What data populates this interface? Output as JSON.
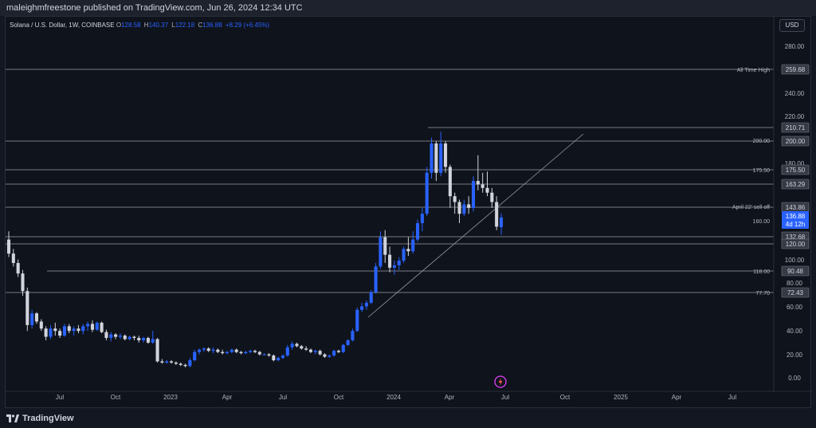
{
  "header": {
    "publisher_text": "maleighmfreestone published on TradingView.com, Jun 26, 2024 12:34 UTC"
  },
  "symbol": {
    "title": "Solana / U.S. Dollar, 1W, COINBASE",
    "open_label": "O",
    "open": "128.58",
    "high_label": "H",
    "high": "140.37",
    "low_label": "L",
    "low": "122.18",
    "close_label": "C",
    "close": "136.88",
    "change": "+8.29 (+6.45%)"
  },
  "currency": "USD",
  "footer": {
    "brand": "TradingView"
  },
  "colors": {
    "background": "#0f131c",
    "bull": "#2962ff",
    "bear": "#d1d4dc",
    "line": "#787b86",
    "price_badge": "#2962ff"
  },
  "chart_data": {
    "type": "candlestick",
    "timeframe": "1W",
    "x_axis_labels": [
      "Jul",
      "Oct",
      "2023",
      "Apr",
      "Jul",
      "Oct",
      "2024",
      "Apr",
      "Jul",
      "Oct",
      "2025",
      "Apr",
      "Jul"
    ],
    "y_axis_ticks": [
      "280.00",
      "240.00",
      "220.00",
      "180.00",
      "100.00",
      "80.00",
      "60.00",
      "40.00",
      "20.00",
      "0.00"
    ],
    "horizontal_levels": [
      {
        "value": 259.68,
        "label": "All Time High",
        "badge": "259.68"
      },
      {
        "value": 210.71,
        "label": "",
        "badge": "210.71"
      },
      {
        "value": 200.0,
        "label": "200.00",
        "badge": "200.00"
      },
      {
        "value": 175.5,
        "label": "175.50",
        "badge": "175.50"
      },
      {
        "value": 163.29,
        "label": "",
        "badge": "163.29"
      },
      {
        "value": 143.86,
        "label": "April 22' sell off",
        "badge": "143.86"
      },
      {
        "value": 132.68,
        "label": "160.00",
        "badge": "132.68"
      },
      {
        "value": 120.0,
        "label": "",
        "badge": "120.00"
      },
      {
        "value": 90.48,
        "label": "118.00",
        "badge": "90.48"
      },
      {
        "value": 72.43,
        "label": "77.70",
        "badge": "72.43"
      }
    ],
    "current_price": {
      "value": 136.88,
      "badge": "136.88",
      "countdown": "4d 12h"
    },
    "trendline": [
      {
        "date": "2023-11-06",
        "price": 52
      },
      {
        "date": "2024-10-07",
        "price": 205
      }
    ],
    "candles": [
      {
        "o": 118,
        "h": 125,
        "l": 103,
        "c": 106
      },
      {
        "o": 106,
        "h": 110,
        "l": 95,
        "c": 98
      },
      {
        "o": 98,
        "h": 101,
        "l": 86,
        "c": 89
      },
      {
        "o": 89,
        "h": 92,
        "l": 70,
        "c": 74
      },
      {
        "o": 74,
        "h": 77,
        "l": 40,
        "c": 45
      },
      {
        "o": 45,
        "h": 58,
        "l": 42,
        "c": 55
      },
      {
        "o": 55,
        "h": 56,
        "l": 46,
        "c": 48
      },
      {
        "o": 48,
        "h": 50,
        "l": 40,
        "c": 42
      },
      {
        "o": 42,
        "h": 44,
        "l": 32,
        "c": 35
      },
      {
        "o": 35,
        "h": 45,
        "l": 33,
        "c": 42
      },
      {
        "o": 42,
        "h": 47,
        "l": 36,
        "c": 40
      },
      {
        "o": 40,
        "h": 42,
        "l": 34,
        "c": 36
      },
      {
        "o": 36,
        "h": 46,
        "l": 35,
        "c": 44
      },
      {
        "o": 44,
        "h": 46,
        "l": 38,
        "c": 40
      },
      {
        "o": 40,
        "h": 44,
        "l": 36,
        "c": 42
      },
      {
        "o": 42,
        "h": 45,
        "l": 38,
        "c": 40
      },
      {
        "o": 40,
        "h": 46,
        "l": 37,
        "c": 44
      },
      {
        "o": 44,
        "h": 48,
        "l": 40,
        "c": 46
      },
      {
        "o": 46,
        "h": 49,
        "l": 39,
        "c": 41
      },
      {
        "o": 41,
        "h": 48,
        "l": 40,
        "c": 47
      },
      {
        "o": 47,
        "h": 48,
        "l": 38,
        "c": 39
      },
      {
        "o": 39,
        "h": 41,
        "l": 32,
        "c": 34
      },
      {
        "o": 34,
        "h": 39,
        "l": 31,
        "c": 37
      },
      {
        "o": 37,
        "h": 38,
        "l": 33,
        "c": 35
      },
      {
        "o": 35,
        "h": 38,
        "l": 33,
        "c": 36
      },
      {
        "o": 36,
        "h": 37,
        "l": 32,
        "c": 33
      },
      {
        "o": 33,
        "h": 36,
        "l": 32,
        "c": 35
      },
      {
        "o": 35,
        "h": 36,
        "l": 32,
        "c": 34
      },
      {
        "o": 34,
        "h": 36,
        "l": 30,
        "c": 32
      },
      {
        "o": 32,
        "h": 35,
        "l": 30,
        "c": 34
      },
      {
        "o": 34,
        "h": 35,
        "l": 29,
        "c": 30
      },
      {
        "o": 30,
        "h": 40,
        "l": 29,
        "c": 33
      },
      {
        "o": 33,
        "h": 34,
        "l": 13,
        "c": 14
      },
      {
        "o": 14,
        "h": 16,
        "l": 12,
        "c": 13
      },
      {
        "o": 13,
        "h": 15,
        "l": 12,
        "c": 14
      },
      {
        "o": 14,
        "h": 15,
        "l": 12,
        "c": 13
      },
      {
        "o": 13,
        "h": 14,
        "l": 11,
        "c": 12
      },
      {
        "o": 12,
        "h": 13,
        "l": 10,
        "c": 11
      },
      {
        "o": 11,
        "h": 12,
        "l": 9,
        "c": 10
      },
      {
        "o": 10,
        "h": 17,
        "l": 9,
        "c": 15
      },
      {
        "o": 15,
        "h": 24,
        "l": 14,
        "c": 22
      },
      {
        "o": 22,
        "h": 25,
        "l": 20,
        "c": 24
      },
      {
        "o": 24,
        "h": 26,
        "l": 22,
        "c": 25
      },
      {
        "o": 25,
        "h": 26,
        "l": 22,
        "c": 23
      },
      {
        "o": 23,
        "h": 26,
        "l": 21,
        "c": 24
      },
      {
        "o": 24,
        "h": 25,
        "l": 21,
        "c": 22
      },
      {
        "o": 22,
        "h": 24,
        "l": 20,
        "c": 21
      },
      {
        "o": 21,
        "h": 23,
        "l": 20,
        "c": 22
      },
      {
        "o": 22,
        "h": 25,
        "l": 21,
        "c": 24
      },
      {
        "o": 24,
        "h": 25,
        "l": 21,
        "c": 22
      },
      {
        "o": 22,
        "h": 23,
        "l": 20,
        "c": 21
      },
      {
        "o": 21,
        "h": 23,
        "l": 20,
        "c": 22
      },
      {
        "o": 22,
        "h": 24,
        "l": 21,
        "c": 23
      },
      {
        "o": 23,
        "h": 24,
        "l": 21,
        "c": 22
      },
      {
        "o": 22,
        "h": 23,
        "l": 19,
        "c": 20
      },
      {
        "o": 20,
        "h": 21,
        "l": 19,
        "c": 20
      },
      {
        "o": 20,
        "h": 21,
        "l": 18,
        "c": 19
      },
      {
        "o": 19,
        "h": 20,
        "l": 14,
        "c": 15
      },
      {
        "o": 15,
        "h": 18,
        "l": 14,
        "c": 17
      },
      {
        "o": 17,
        "h": 20,
        "l": 16,
        "c": 19
      },
      {
        "o": 19,
        "h": 28,
        "l": 18,
        "c": 26
      },
      {
        "o": 26,
        "h": 31,
        "l": 24,
        "c": 29
      },
      {
        "o": 29,
        "h": 30,
        "l": 26,
        "c": 27
      },
      {
        "o": 27,
        "h": 28,
        "l": 24,
        "c": 25
      },
      {
        "o": 25,
        "h": 27,
        "l": 23,
        "c": 24
      },
      {
        "o": 24,
        "h": 25,
        "l": 21,
        "c": 22
      },
      {
        "o": 22,
        "h": 24,
        "l": 20,
        "c": 23
      },
      {
        "o": 23,
        "h": 24,
        "l": 19,
        "c": 20
      },
      {
        "o": 20,
        "h": 21,
        "l": 17,
        "c": 18
      },
      {
        "o": 18,
        "h": 20,
        "l": 17,
        "c": 19
      },
      {
        "o": 19,
        "h": 24,
        "l": 18,
        "c": 23
      },
      {
        "o": 23,
        "h": 24,
        "l": 21,
        "c": 22
      },
      {
        "o": 22,
        "h": 29,
        "l": 21,
        "c": 28
      },
      {
        "o": 28,
        "h": 33,
        "l": 27,
        "c": 32
      },
      {
        "o": 32,
        "h": 42,
        "l": 31,
        "c": 40
      },
      {
        "o": 40,
        "h": 60,
        "l": 39,
        "c": 58
      },
      {
        "o": 58,
        "h": 64,
        "l": 56,
        "c": 61
      },
      {
        "o": 61,
        "h": 66,
        "l": 58,
        "c": 64
      },
      {
        "o": 64,
        "h": 75,
        "l": 63,
        "c": 73
      },
      {
        "o": 73,
        "h": 98,
        "l": 72,
        "c": 95
      },
      {
        "o": 95,
        "h": 125,
        "l": 93,
        "c": 120
      },
      {
        "o": 120,
        "h": 126,
        "l": 98,
        "c": 105
      },
      {
        "o": 105,
        "h": 112,
        "l": 90,
        "c": 94
      },
      {
        "o": 94,
        "h": 100,
        "l": 88,
        "c": 96
      },
      {
        "o": 96,
        "h": 103,
        "l": 92,
        "c": 100
      },
      {
        "o": 100,
        "h": 112,
        "l": 98,
        "c": 110
      },
      {
        "o": 110,
        "h": 120,
        "l": 104,
        "c": 108
      },
      {
        "o": 108,
        "h": 125,
        "l": 106,
        "c": 118
      },
      {
        "o": 118,
        "h": 135,
        "l": 116,
        "c": 132
      },
      {
        "o": 132,
        "h": 145,
        "l": 125,
        "c": 140
      },
      {
        "o": 140,
        "h": 180,
        "l": 138,
        "c": 175
      },
      {
        "o": 175,
        "h": 205,
        "l": 170,
        "c": 200
      },
      {
        "o": 200,
        "h": 202,
        "l": 168,
        "c": 175
      },
      {
        "o": 175,
        "h": 210,
        "l": 172,
        "c": 200
      },
      {
        "o": 200,
        "h": 202,
        "l": 175,
        "c": 180
      },
      {
        "o": 180,
        "h": 182,
        "l": 145,
        "c": 155
      },
      {
        "o": 155,
        "h": 158,
        "l": 140,
        "c": 150
      },
      {
        "o": 150,
        "h": 152,
        "l": 132,
        "c": 140
      },
      {
        "o": 140,
        "h": 152,
        "l": 138,
        "c": 148
      },
      {
        "o": 148,
        "h": 155,
        "l": 140,
        "c": 145
      },
      {
        "o": 145,
        "h": 172,
        "l": 142,
        "c": 168
      },
      {
        "o": 168,
        "h": 190,
        "l": 160,
        "c": 165
      },
      {
        "o": 165,
        "h": 175,
        "l": 158,
        "c": 162
      },
      {
        "o": 162,
        "h": 176,
        "l": 155,
        "c": 158
      },
      {
        "o": 158,
        "h": 162,
        "l": 145,
        "c": 150
      },
      {
        "o": 150,
        "h": 155,
        "l": 126,
        "c": 129
      },
      {
        "o": 128.58,
        "h": 140.37,
        "l": 122.18,
        "c": 136.88
      }
    ]
  }
}
